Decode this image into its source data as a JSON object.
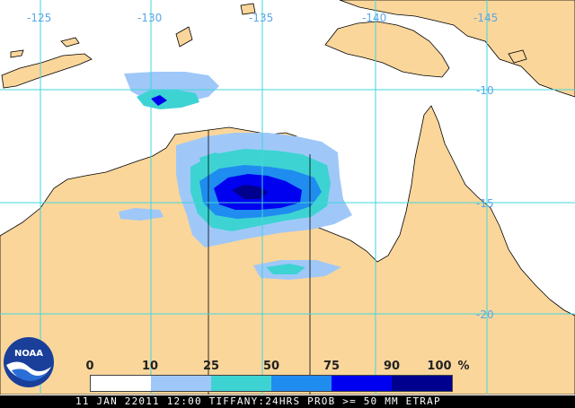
{
  "map": {
    "longitude_labels": [
      "-125",
      "-130",
      "-135",
      "-140",
      "-145"
    ],
    "latitude_labels": [
      "-10",
      "-15",
      "-20"
    ],
    "colors": {
      "land": "#fad69b",
      "ocean": "#ffffff",
      "grid": "#42d5dc",
      "coast": "#000000"
    }
  },
  "legend": {
    "ticks": [
      "0",
      "10",
      "25",
      "50",
      "75",
      "90",
      "100",
      "%"
    ],
    "bins": [
      {
        "range": "0-10",
        "color": "#ffffff"
      },
      {
        "range": "10-25",
        "color": "#9fc8f8"
      },
      {
        "range": "25-50",
        "color": "#3ed3d3"
      },
      {
        "range": "50-75",
        "color": "#1f8cf0"
      },
      {
        "range": "75-90",
        "color": "#0000f0"
      },
      {
        "range": "90-100",
        "color": "#00008f"
      }
    ]
  },
  "caption": "11 JAN 22011 12:00 TIFFANY:24HRS PROB >= 50 MM ETRAP",
  "logo": {
    "text": "NOAA",
    "icon": "noaa-logo-icon"
  }
}
